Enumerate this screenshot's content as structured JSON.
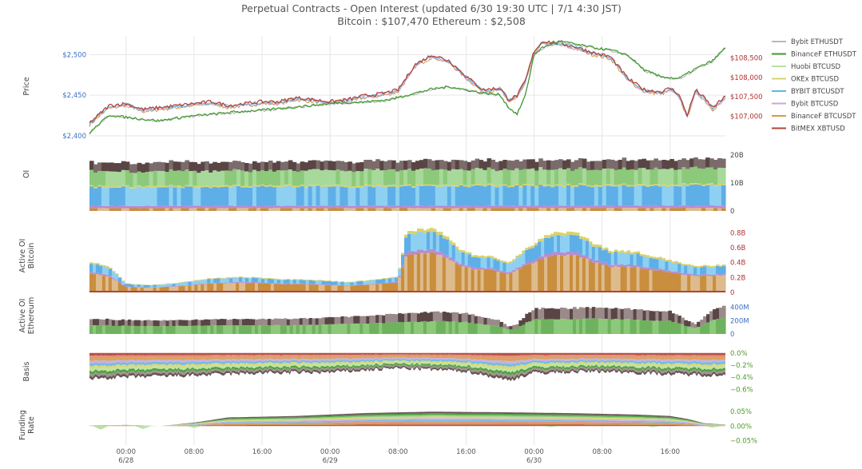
{
  "header": {
    "title": "Perpetual Contracts - Open Interest   (updated  6/30 19:30 UTC   |   7/1 4:30 JST)",
    "subtitle": "Bitcoin : $107,470     Ethereum : $2,508"
  },
  "colors": {
    "eth_axis": "#3a6fc4",
    "btc_axis": "#b03030",
    "green_axis": "#4f9a2a",
    "grid": "#e6e6e6"
  },
  "chart_data": {
    "type": "area",
    "x_ticks": [
      {
        "label": "00:00",
        "sub": "6/28",
        "hour": 0
      },
      {
        "label": "08:00",
        "sub": "",
        "hour": 8
      },
      {
        "label": "16:00",
        "sub": "",
        "hour": 16
      },
      {
        "label": "00:00",
        "sub": "6/29",
        "hour": 24
      },
      {
        "label": "08:00",
        "sub": "",
        "hour": 32
      },
      {
        "label": "16:00",
        "sub": "",
        "hour": 40
      },
      {
        "label": "00:00",
        "sub": "6/30",
        "hour": 48
      },
      {
        "label": "08:00",
        "sub": "",
        "hour": 56
      },
      {
        "label": "16:00",
        "sub": "",
        "hour": 64
      }
    ],
    "x_range_hours": [
      -4.3,
      70.5
    ],
    "legend": [
      {
        "name": "Bybit ETHUSDT",
        "color": "#b9b9b9"
      },
      {
        "name": "BinanceF ETHUSDT",
        "color": "#3f9a2d"
      },
      {
        "name": "Huobi BTCUSD",
        "color": "#b7e3a0"
      },
      {
        "name": "OKEx BTCUSD",
        "color": "#d9d36a"
      },
      {
        "name": "BYBIT BTCUSDT",
        "color": "#63b6e6"
      },
      {
        "name": "Bybit BTCUSD",
        "color": "#c7a8d9"
      },
      {
        "name": "BinanceF BTCUSDT",
        "color": "#d69a4a"
      },
      {
        "name": "BitMEX XBTUSD",
        "color": "#b2433a"
      }
    ],
    "panels": [
      {
        "id": "price",
        "label": "Price",
        "left_ticks": [
          {
            "v": 2500,
            "t": "$2,500"
          },
          {
            "v": 2450,
            "t": "$2,450"
          },
          {
            "v": 2400,
            "t": "$2,400"
          }
        ],
        "left_range": [
          2400,
          2520
        ],
        "right_ticks": [
          {
            "v": 108500,
            "t": "$108,500"
          },
          {
            "v": 108000,
            "t": "$108,000"
          },
          {
            "v": 107500,
            "t": "$107,500"
          },
          {
            "v": 107000,
            "t": "$107,000"
          }
        ],
        "right_range": [
          106500,
          109000
        ],
        "eth": [
          [
            -4.3,
            2403
          ],
          [
            -2,
            2425
          ],
          [
            1,
            2421
          ],
          [
            4,
            2418
          ],
          [
            7,
            2423
          ],
          [
            10,
            2426
          ],
          [
            13,
            2429
          ],
          [
            16,
            2431
          ],
          [
            19,
            2434
          ],
          [
            22,
            2437
          ],
          [
            25,
            2440
          ],
          [
            28,
            2441
          ],
          [
            31,
            2444
          ],
          [
            34,
            2452
          ],
          [
            36,
            2457
          ],
          [
            38,
            2460
          ],
          [
            40,
            2456
          ],
          [
            42,
            2452
          ],
          [
            44,
            2450
          ],
          [
            45,
            2434
          ],
          [
            46,
            2426
          ],
          [
            47,
            2450
          ],
          [
            48,
            2500
          ],
          [
            49,
            2508
          ],
          [
            51,
            2516
          ],
          [
            53,
            2512
          ],
          [
            55,
            2508
          ],
          [
            57,
            2505
          ],
          [
            59,
            2499
          ],
          [
            61,
            2480
          ],
          [
            63,
            2472
          ],
          [
            65,
            2470
          ],
          [
            67,
            2482
          ],
          [
            69,
            2492
          ],
          [
            70.5,
            2508
          ]
        ],
        "btc": [
          [
            -4.3,
            106800
          ],
          [
            -2,
            107250
          ],
          [
            0,
            107300
          ],
          [
            2,
            107150
          ],
          [
            4,
            107200
          ],
          [
            6,
            107250
          ],
          [
            8,
            107300
          ],
          [
            10,
            107350
          ],
          [
            12,
            107250
          ],
          [
            14,
            107300
          ],
          [
            16,
            107350
          ],
          [
            18,
            107350
          ],
          [
            20,
            107450
          ],
          [
            22,
            107400
          ],
          [
            24,
            107350
          ],
          [
            26,
            107400
          ],
          [
            28,
            107500
          ],
          [
            30,
            107550
          ],
          [
            32,
            107650
          ],
          [
            34,
            108300
          ],
          [
            36,
            108550
          ],
          [
            38,
            108400
          ],
          [
            40,
            108000
          ],
          [
            42,
            107650
          ],
          [
            44,
            107700
          ],
          [
            45,
            107400
          ],
          [
            46,
            107500
          ],
          [
            47,
            107900
          ],
          [
            48,
            108650
          ],
          [
            49,
            108900
          ],
          [
            51,
            108850
          ],
          [
            53,
            108750
          ],
          [
            55,
            108600
          ],
          [
            57,
            108500
          ],
          [
            59,
            107950
          ],
          [
            61,
            107650
          ],
          [
            63,
            107600
          ],
          [
            64,
            107700
          ],
          [
            65,
            107550
          ],
          [
            66,
            107000
          ],
          [
            67,
            107650
          ],
          [
            68,
            107450
          ],
          [
            69,
            107200
          ],
          [
            70.5,
            107470
          ]
        ]
      },
      {
        "id": "oi",
        "label": "OI",
        "right_ticks": [
          {
            "v": 20,
            "t": "20B"
          },
          {
            "v": 10,
            "t": "10B"
          },
          {
            "v": 0,
            "t": "0"
          }
        ],
        "range": [
          0,
          24
        ],
        "layers": [
          {
            "color": "#c98e3e",
            "base": 1.0
          },
          {
            "color": "#b98ad2",
            "base": 0.8
          },
          {
            "color": "#5eaee8",
            "base": 6.6
          },
          {
            "color": "#d9d36a",
            "base": 0.5
          },
          {
            "color": "#8cc97a",
            "base": 5.2
          },
          {
            "color": "#7b6b6b",
            "base": 3.1
          }
        ]
      },
      {
        "id": "active_oi_btc",
        "label": "Active OI",
        "label2": "Bitcoin",
        "right_ticks": [
          {
            "v": 0.8,
            "t": "0.8B"
          },
          {
            "v": 0.6,
            "t": "0.6B"
          },
          {
            "v": 0.4,
            "t": "0.4B"
          },
          {
            "v": 0.2,
            "t": "0.2B"
          },
          {
            "v": 0,
            "t": "0"
          }
        ],
        "range": [
          0,
          0.9
        ],
        "total": [
          [
            -4.3,
            0.42
          ],
          [
            -2,
            0.35
          ],
          [
            0,
            0.12
          ],
          [
            3,
            0.1
          ],
          [
            6,
            0.13
          ],
          [
            10,
            0.19
          ],
          [
            14,
            0.21
          ],
          [
            18,
            0.18
          ],
          [
            22,
            0.17
          ],
          [
            26,
            0.14
          ],
          [
            30,
            0.18
          ],
          [
            32,
            0.22
          ],
          [
            33,
            0.82
          ],
          [
            35,
            0.86
          ],
          [
            37,
            0.82
          ],
          [
            39,
            0.6
          ],
          [
            41,
            0.5
          ],
          [
            43,
            0.48
          ],
          [
            45,
            0.4
          ],
          [
            47,
            0.58
          ],
          [
            49,
            0.73
          ],
          [
            51,
            0.82
          ],
          [
            53,
            0.8
          ],
          [
            55,
            0.66
          ],
          [
            57,
            0.56
          ],
          [
            59,
            0.56
          ],
          [
            61,
            0.52
          ],
          [
            63,
            0.46
          ],
          [
            65,
            0.4
          ],
          [
            67,
            0.36
          ],
          [
            69,
            0.36
          ],
          [
            70.5,
            0.37
          ]
        ],
        "brown_frac": 0.62
      },
      {
        "id": "active_oi_eth",
        "label": "Active OI",
        "label2": "Ethereum",
        "right_ticks": [
          {
            "v": 400,
            "t": "400M"
          },
          {
            "v": 200,
            "t": "200M"
          },
          {
            "v": 0,
            "t": "0"
          }
        ],
        "range": [
          0,
          480
        ],
        "total": [
          [
            -4.3,
            230
          ],
          [
            -2,
            220
          ],
          [
            0,
            210
          ],
          [
            4,
            205
          ],
          [
            8,
            215
          ],
          [
            12,
            220
          ],
          [
            16,
            225
          ],
          [
            20,
            230
          ],
          [
            24,
            250
          ],
          [
            28,
            270
          ],
          [
            32,
            300
          ],
          [
            36,
            330
          ],
          [
            40,
            310
          ],
          [
            44,
            200
          ],
          [
            45,
            105
          ],
          [
            46,
            150
          ],
          [
            47,
            280
          ],
          [
            48,
            380
          ],
          [
            52,
            390
          ],
          [
            56,
            395
          ],
          [
            60,
            370
          ],
          [
            64,
            340
          ],
          [
            66,
            200
          ],
          [
            67,
            150
          ],
          [
            69,
            350
          ],
          [
            70.5,
            420
          ]
        ],
        "green_frac": 0.58
      },
      {
        "id": "basis",
        "label": "Basis",
        "right_ticks": [
          {
            "v": 0.0,
            "t": "0.0%"
          },
          {
            "v": -0.2,
            "t": "−0.2%"
          },
          {
            "v": -0.4,
            "t": "−0.4%"
          },
          {
            "v": -0.6,
            "t": "−0.6%"
          }
        ],
        "range": [
          -0.7,
          0.05
        ],
        "bottom": [
          [
            -4.3,
            -0.42
          ],
          [
            0,
            -0.4
          ],
          [
            8,
            -0.37
          ],
          [
            16,
            -0.33
          ],
          [
            24,
            -0.32
          ],
          [
            32,
            -0.25
          ],
          [
            40,
            -0.3
          ],
          [
            45,
            -0.45
          ],
          [
            48,
            -0.33
          ],
          [
            56,
            -0.3
          ],
          [
            64,
            -0.35
          ],
          [
            70.5,
            -0.37
          ]
        ]
      },
      {
        "id": "funding",
        "label": "Funding",
        "label2": "Rate",
        "right_ticks": [
          {
            "v": 0.05,
            "t": "0.05%"
          },
          {
            "v": 0.0,
            "t": "0.00%"
          },
          {
            "v": -0.05,
            "t": "−0.05%"
          }
        ],
        "range": [
          -0.06,
          0.07
        ],
        "top": [
          [
            -4.3,
            0.002
          ],
          [
            0,
            0.004
          ],
          [
            4,
            0.0
          ],
          [
            8,
            0.012
          ],
          [
            12,
            0.03
          ],
          [
            20,
            0.035
          ],
          [
            28,
            0.045
          ],
          [
            36,
            0.05
          ],
          [
            44,
            0.048
          ],
          [
            52,
            0.045
          ],
          [
            60,
            0.04
          ],
          [
            64,
            0.035
          ],
          [
            66,
            0.025
          ],
          [
            68,
            0.01
          ],
          [
            70.5,
            0.005
          ]
        ]
      }
    ]
  }
}
